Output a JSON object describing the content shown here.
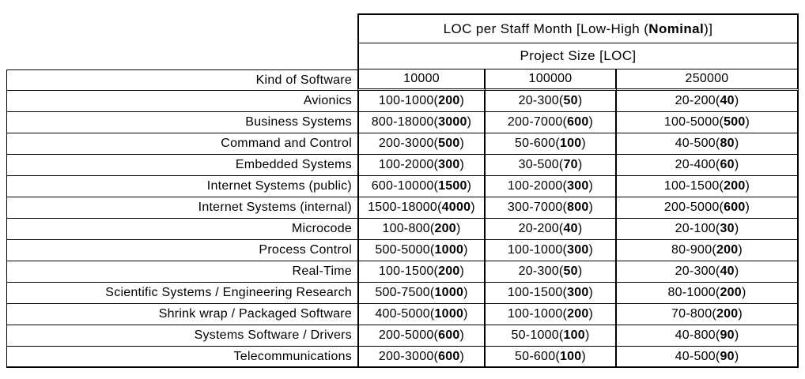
{
  "table": {
    "main_header": {
      "prefix": "LOC per Staff Month [Low-High (",
      "bold": "Nominal",
      "suffix": ")]"
    },
    "sub_header": "Project Size [LOC]",
    "row_header_label": "Kind of Software",
    "column_headers": [
      "10000",
      "100000",
      "250000"
    ],
    "rows": [
      {
        "name": "Avionics",
        "cells": [
          {
            "low_high": "100-1000",
            "nominal": "200"
          },
          {
            "low_high": "20-300",
            "nominal": "50"
          },
          {
            "low_high": "20-200",
            "nominal": "40"
          }
        ]
      },
      {
        "name": "Business Systems",
        "cells": [
          {
            "low_high": "800-18000",
            "nominal": "3000"
          },
          {
            "low_high": "200-7000",
            "nominal": "600"
          },
          {
            "low_high": "100-5000",
            "nominal": "500"
          }
        ]
      },
      {
        "name": "Command and Control",
        "cells": [
          {
            "low_high": "200-3000",
            "nominal": "500"
          },
          {
            "low_high": "50-600",
            "nominal": "100"
          },
          {
            "low_high": "40-500",
            "nominal": "80"
          }
        ]
      },
      {
        "name": "Embedded Systems",
        "cells": [
          {
            "low_high": "100-2000",
            "nominal": "300"
          },
          {
            "low_high": "30-500",
            "nominal": "70"
          },
          {
            "low_high": "20-400",
            "nominal": "60"
          }
        ]
      },
      {
        "name": "Internet Systems (public)",
        "cells": [
          {
            "low_high": "600-10000",
            "nominal": "1500"
          },
          {
            "low_high": "100-2000",
            "nominal": "300"
          },
          {
            "low_high": "100-1500",
            "nominal": "200"
          }
        ]
      },
      {
        "name": "Internet Systems (internal)",
        "cells": [
          {
            "low_high": "1500-18000",
            "nominal": "4000"
          },
          {
            "low_high": "300-7000",
            "nominal": "800"
          },
          {
            "low_high": "200-5000",
            "nominal": "600"
          }
        ]
      },
      {
        "name": "Microcode",
        "cells": [
          {
            "low_high": "100-800",
            "nominal": "200"
          },
          {
            "low_high": "20-200",
            "nominal": "40"
          },
          {
            "low_high": "20-100",
            "nominal": "30"
          }
        ]
      },
      {
        "name": "Process Control",
        "cells": [
          {
            "low_high": "500-5000",
            "nominal": "1000"
          },
          {
            "low_high": "100-1000",
            "nominal": "300"
          },
          {
            "low_high": "80-900",
            "nominal": "200"
          }
        ]
      },
      {
        "name": "Real-Time",
        "cells": [
          {
            "low_high": "100-1500",
            "nominal": "200"
          },
          {
            "low_high": "20-300",
            "nominal": "50"
          },
          {
            "low_high": "20-300",
            "nominal": "40"
          }
        ]
      },
      {
        "name": "Scientific Systems / Engineering Research",
        "cells": [
          {
            "low_high": "500-7500",
            "nominal": "1000"
          },
          {
            "low_high": "100-1500",
            "nominal": "300"
          },
          {
            "low_high": "80-1000",
            "nominal": "200"
          }
        ]
      },
      {
        "name": "Shrink wrap / Packaged Software",
        "cells": [
          {
            "low_high": "400-5000",
            "nominal": "1000"
          },
          {
            "low_high": "100-1000",
            "nominal": "200"
          },
          {
            "low_high": "70-800",
            "nominal": "200"
          }
        ]
      },
      {
        "name": "Systems Software / Drivers",
        "cells": [
          {
            "low_high": "200-5000",
            "nominal": "600"
          },
          {
            "low_high": "50-1000",
            "nominal": "100"
          },
          {
            "low_high": "40-800",
            "nominal": "90"
          }
        ]
      },
      {
        "name": "Telecommunications",
        "cells": [
          {
            "low_high": "200-3000",
            "nominal": "600"
          },
          {
            "low_high": "50-600",
            "nominal": "100"
          },
          {
            "low_high": "40-500",
            "nominal": "90"
          }
        ]
      }
    ]
  },
  "chart_data": {
    "type": "table",
    "title": "LOC per Staff Month [Low-High (Nominal)]",
    "column_group_label": "Project Size [LOC]",
    "columns": [
      "Kind of Software",
      "10000",
      "100000",
      "250000"
    ],
    "rows": [
      [
        "Avionics",
        "100-1000(200)",
        "20-300(50)",
        "20-200(40)"
      ],
      [
        "Business Systems",
        "800-18000(3000)",
        "200-7000(600)",
        "100-5000(500)"
      ],
      [
        "Command and Control",
        "200-3000(500)",
        "50-600(100)",
        "40-500(80)"
      ],
      [
        "Embedded Systems",
        "100-2000(300)",
        "30-500(70)",
        "20-400(60)"
      ],
      [
        "Internet Systems (public)",
        "600-10000(1500)",
        "100-2000(300)",
        "100-1500(200)"
      ],
      [
        "Internet Systems (internal)",
        "1500-18000(4000)",
        "300-7000(800)",
        "200-5000(600)"
      ],
      [
        "Microcode",
        "100-800(200)",
        "20-200(40)",
        "20-100(30)"
      ],
      [
        "Process Control",
        "500-5000(1000)",
        "100-1000(300)",
        "80-900(200)"
      ],
      [
        "Real-Time",
        "100-1500(200)",
        "20-300(50)",
        "20-300(40)"
      ],
      [
        "Scientific Systems / Engineering Research",
        "500-7500(1000)",
        "100-1500(300)",
        "80-1000(200)"
      ],
      [
        "Shrink wrap / Packaged Software",
        "400-5000(1000)",
        "100-1000(200)",
        "70-800(200)"
      ],
      [
        "Systems Software / Drivers",
        "200-5000(600)",
        "50-1000(100)",
        "40-800(90)"
      ],
      [
        "Telecommunications",
        "200-3000(600)",
        "50-600(100)",
        "40-500(90)"
      ]
    ]
  },
  "colors": {
    "border": "#000000",
    "text": "#000000",
    "background": "#ffffff"
  }
}
